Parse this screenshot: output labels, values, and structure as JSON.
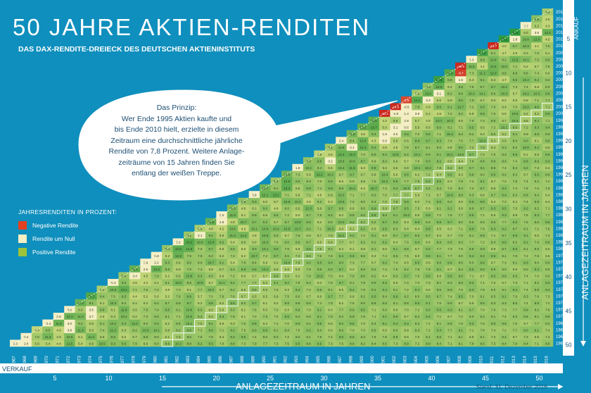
{
  "header": {
    "title": "50 JAHRE AKTIEN-RENDITEN",
    "subtitle": "DAS DAX-RENDITE-DREIECK DES DEUTSCHEN AKTIENINSTITUTS"
  },
  "callout": {
    "lines": [
      "Das Prinzip:",
      "Wer Ende 1995 Aktien kaufte und",
      "bis Ende 2010 hielt, erzielte in diesem",
      "Zeitraum eine durchschnittliche jährliche",
      "Rendite von 7,8 Prozent. Weitere Anlage-",
      "zeiträume von 15 Jahren finden Sie",
      "entlang der weißen Treppe."
    ]
  },
  "legend": {
    "title": "JAHRESRENDITEN IN PROZENT:",
    "items": [
      {
        "label": "Negative Rendite",
        "color": "#e2401f"
      },
      {
        "label": "Rendite um Null",
        "color": "#f6f0c4"
      },
      {
        "label": "Positive Rendite",
        "color": "#9ec33a"
      }
    ]
  },
  "footer": {
    "stand": "Stand: 31. Dezember 2016"
  },
  "chart_data": {
    "type": "heatmap",
    "title": "50 JAHRE AKTIEN-RENDITEN",
    "subtitle": "DAS DAX-RENDITE-DREIECK DES DEUTSCHEN AKTIENINSTITUTS",
    "x_label": "VERKAUF",
    "x_axis_title": "ANLAGEZEITRAUM IN JAHREN",
    "y_label": "ANKAUF",
    "y_axis_title": "ANLAGEZEITRAUM IN JAHREN",
    "sell_years_first": 1967,
    "sell_years_last": 2016,
    "buy_years_first": 1966,
    "buy_years_last": 2015,
    "bottom_ticks": [
      5,
      10,
      15,
      20,
      25,
      30,
      35,
      40,
      45,
      50
    ],
    "right_ticks": [
      5,
      10,
      15,
      20,
      25,
      30,
      35,
      40,
      45,
      50
    ],
    "diagonal_years": [
      {
        "buy": 2015,
        "sell": 2016,
        "value": 6.9
      },
      {
        "buy": 2014,
        "sell": 2015,
        "value": 9.6
      },
      {
        "buy": 2013,
        "sell": 2014,
        "value": 2.7
      },
      {
        "buy": 2012,
        "sell": 2013,
        "value": 25.5
      },
      {
        "buy": 2011,
        "sell": 2012,
        "value": 29.1
      },
      {
        "buy": 2010,
        "sell": 2011,
        "value": -14.7
      }
    ],
    "highlight": {
      "buy": 1995,
      "sell": 2010,
      "years": 15,
      "value": 7.8
    },
    "staircase_years": 15
  }
}
